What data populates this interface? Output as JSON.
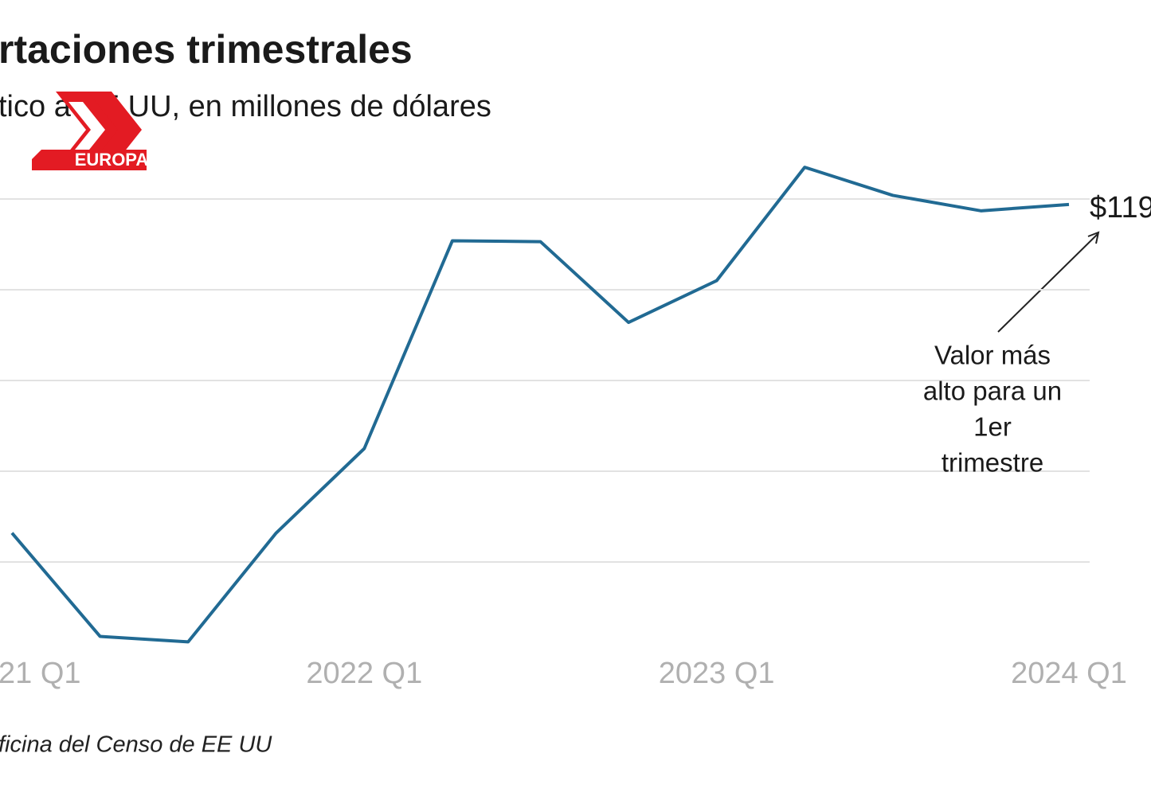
{
  "chart_data": {
    "type": "line",
    "title": "rtaciones trimestrales",
    "subtitle": "tico a EE UU, en millones de dólares",
    "logo": "EUROPA",
    "source": "ficina del Censo de EE UU",
    "categories": [
      "21 Q1",
      null,
      null,
      null,
      "2022 Q1",
      null,
      null,
      null,
      "2023 Q1",
      null,
      null,
      null,
      "2024 Q1"
    ],
    "series": [
      {
        "color": "#216a93",
        "values": [
          83200,
          71800,
          71200,
          83200,
          92500,
          115400,
          115300,
          106400,
          111000,
          123500,
          120400,
          118700,
          119400
        ],
        "value_labels": [
          null,
          null,
          null,
          null,
          null,
          null,
          null,
          null,
          null,
          null,
          null,
          null,
          "$119"
        ]
      }
    ],
    "ylim": [
      70000,
      125000
    ],
    "yticks": [
      80000,
      90000,
      100000,
      110000,
      120000
    ],
    "grid": true,
    "annotation": [
      "Valor más",
      "alto para un",
      "1er",
      "trimestre"
    ]
  }
}
